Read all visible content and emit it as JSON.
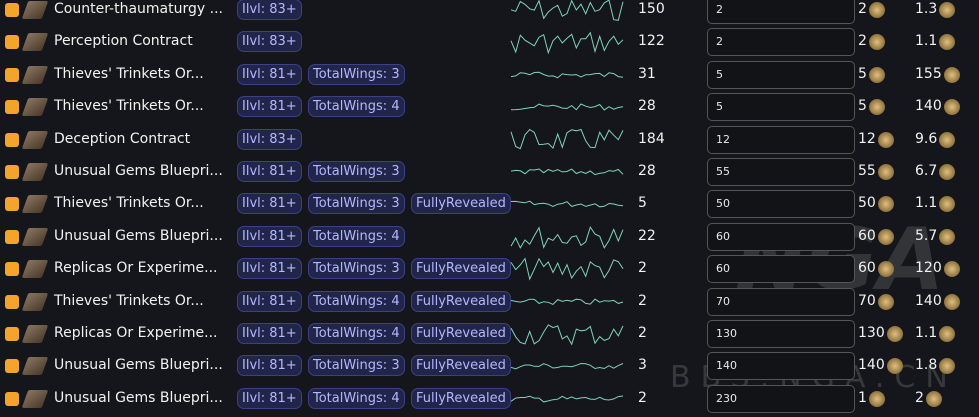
{
  "rows": [
    {
      "name": "Counter-thaumaturgy ...",
      "tags": [
        "Ilvl: 83+"
      ],
      "count": 150,
      "input": 2,
      "price": 2,
      "ratio": 1.3
    },
    {
      "name": "Perception Contract",
      "tags": [
        "Ilvl: 83+"
      ],
      "count": 122,
      "input": 2,
      "price": 2,
      "ratio": 1.1
    },
    {
      "name": "Thieves' Trinkets Or...",
      "tags": [
        "Ilvl: 81+",
        "TotalWings: 3"
      ],
      "count": 31,
      "input": 5,
      "price": 5,
      "ratio": 155
    },
    {
      "name": "Thieves' Trinkets Or...",
      "tags": [
        "Ilvl: 81+",
        "TotalWings: 4"
      ],
      "count": 28,
      "input": 5,
      "price": 5,
      "ratio": 140
    },
    {
      "name": "Deception Contract",
      "tags": [
        "Ilvl: 83+"
      ],
      "count": 184,
      "input": 12,
      "price": 12,
      "ratio": 9.6
    },
    {
      "name": "Unusual Gems Bluepri...",
      "tags": [
        "Ilvl: 81+",
        "TotalWings: 3"
      ],
      "count": 28,
      "input": 55,
      "price": 55,
      "ratio": 6.7
    },
    {
      "name": "Thieves' Trinkets Or...",
      "tags": [
        "Ilvl: 81+",
        "TotalWings: 3",
        "FullyRevealed"
      ],
      "count": 5,
      "input": 50,
      "price": 50,
      "ratio": 1.1
    },
    {
      "name": "Unusual Gems Bluepri...",
      "tags": [
        "Ilvl: 81+",
        "TotalWings: 4"
      ],
      "count": 22,
      "input": 60,
      "price": 60,
      "ratio": 5.7
    },
    {
      "name": "Replicas Or Experime...",
      "tags": [
        "Ilvl: 81+",
        "TotalWings: 3",
        "FullyRevealed"
      ],
      "count": 2,
      "input": 60,
      "price": 60,
      "ratio": 120
    },
    {
      "name": "Thieves' Trinkets Or...",
      "tags": [
        "Ilvl: 81+",
        "TotalWings: 4",
        "FullyRevealed"
      ],
      "count": 2,
      "input": 70,
      "price": 70,
      "ratio": 140
    },
    {
      "name": "Replicas Or Experime...",
      "tags": [
        "Ilvl: 81+",
        "TotalWings: 4",
        "FullyRevealed"
      ],
      "count": 2,
      "input": 130,
      "price": 130,
      "ratio": 1.1
    },
    {
      "name": "Unusual Gems Bluepri...",
      "tags": [
        "Ilvl: 81+",
        "TotalWings: 3",
        "FullyRevealed"
      ],
      "count": 3,
      "input": 140,
      "price": 140,
      "ratio": 1.8
    },
    {
      "name": "Unusual Gems Bluepri...",
      "tags": [
        "Ilvl: 81+",
        "TotalWings: 4",
        "FullyRevealed"
      ],
      "count": 2,
      "input": 230,
      "price": 1,
      "ratio": 2
    }
  ],
  "watermark": {
    "logo": "NGA",
    "site": "BBS.NGA.CN"
  }
}
